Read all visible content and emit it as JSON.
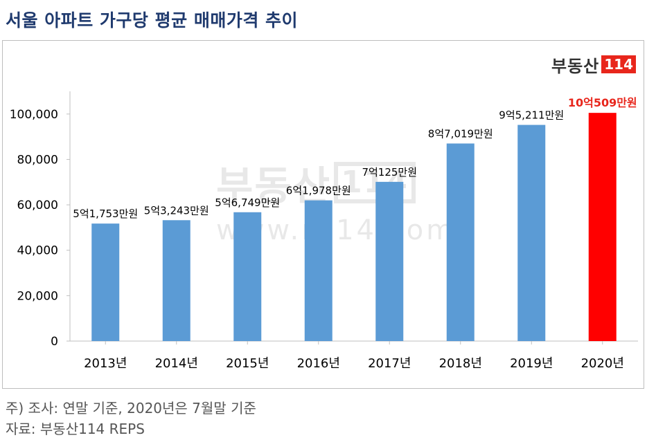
{
  "title": "서울 아파트 가구당 평균 매매가격 추이",
  "logo": {
    "brand": "부동산",
    "number": "114"
  },
  "watermark": {
    "brand": "부동산",
    "number": "114",
    "url": "www.r114.com"
  },
  "notes": {
    "note1": "주) 조사: 연말 기준, 2020년은 7월말 기준",
    "note2": "자료: 부동산114 REPS"
  },
  "colors": {
    "bar": "#5b9bd5",
    "highlight_bar": "#ff0000",
    "highlight_label": "#e8261c",
    "title": "#1f3a6e"
  },
  "chart_data": {
    "type": "bar",
    "title": "서울 아파트 가구당 평균 매매가격 추이",
    "xlabel": "",
    "ylabel": "",
    "ylim": [
      0,
      110000
    ],
    "yticks": [
      0,
      20000,
      40000,
      60000,
      80000,
      100000
    ],
    "ytick_labels": [
      "0",
      "20,000",
      "40,000",
      "60,000",
      "80,000",
      "100,000"
    ],
    "grid": false,
    "categories": [
      "2013년",
      "2014년",
      "2015년",
      "2016년",
      "2017년",
      "2018년",
      "2019년",
      "2020년"
    ],
    "values": [
      51753,
      53243,
      56749,
      61978,
      70125,
      87019,
      95211,
      100509
    ],
    "data_labels": [
      "5억1,753만원",
      "5억3,243만원",
      "5억6,749만원",
      "6억1,978만원",
      "7억125만원",
      "8억7,019만원",
      "9억5,211만원",
      "10억509만원"
    ],
    "highlight_index": 7
  }
}
